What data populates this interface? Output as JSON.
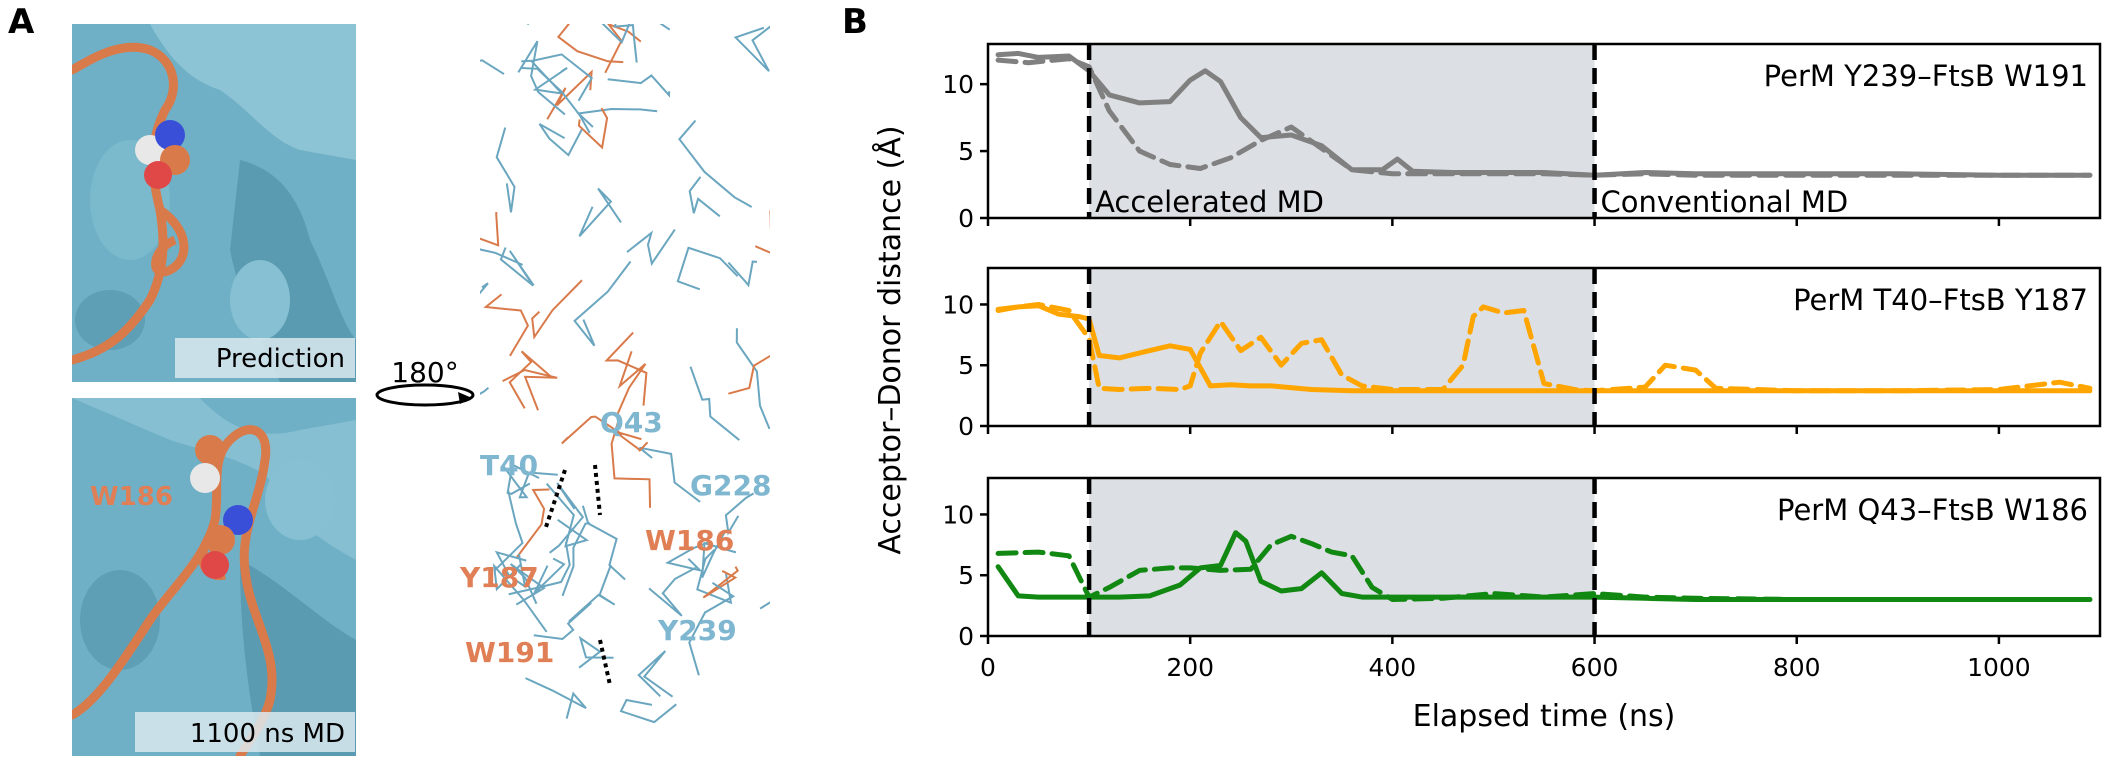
{
  "panels": {
    "a": "A",
    "b": "B"
  },
  "molecular": {
    "top_caption": "Prediction",
    "bottom_caption": "1100 ns MD",
    "rotation": "180°",
    "surface_label": "W186",
    "residue_labels_blue": [
      "Q43",
      "T40",
      "G228",
      "Y239"
    ],
    "residue_labels_orange": [
      "W186",
      "Y187",
      "W191"
    ],
    "colors": {
      "surface": "#6fb0c6",
      "ribbon": "#d97a4a",
      "blue_text": "#7fb6d0",
      "orange_text": "#e07f55"
    }
  },
  "chart_data": {
    "type": "line",
    "xlabel": "Elapsed time (ns)",
    "ylabel": "Acceptor–Donor distance (Å)",
    "xlim": [
      0,
      1100
    ],
    "xticks": [
      "0",
      "200",
      "400",
      "600",
      "800",
      "1000"
    ],
    "yticks": [
      "0",
      "5",
      "10"
    ],
    "ylim": [
      0,
      13
    ],
    "shaded_region": [
      100,
      600
    ],
    "vlines": [
      100,
      600
    ],
    "region_labels": [
      "Accelerated MD",
      "Conventional MD"
    ],
    "subplots": [
      {
        "title": "PerM Y239–FtsB W191",
        "color": "#808080",
        "series": [
          {
            "style": "solid",
            "x": [
              10,
              30,
              50,
              80,
              100,
              120,
              150,
              180,
              200,
              215,
              230,
              250,
              270,
              300,
              330,
              360,
              390,
              405,
              420,
              460,
              500,
              550,
              600,
              650,
              700,
              800,
              900,
              1000,
              1090
            ],
            "y": [
              12.2,
              12.3,
              12,
              12.1,
              11,
              9.2,
              8.6,
              8.7,
              10.3,
              11,
              10.2,
              7.5,
              6,
              6.2,
              5.4,
              3.6,
              3.6,
              4.4,
              3.5,
              3.4,
              3.4,
              3.4,
              3.2,
              3.4,
              3.3,
              3.3,
              3.3,
              3.2,
              3.2
            ]
          },
          {
            "style": "dashed",
            "x": [
              10,
              40,
              80,
              100,
              120,
              150,
              180,
              210,
              240,
              270,
              300,
              330,
              360,
              400,
              450,
              500,
              550,
              600,
              650,
              700,
              800,
              900,
              1000,
              1090
            ],
            "y": [
              11.8,
              11.6,
              11.9,
              11.3,
              8,
              5,
              4,
              3.7,
              4.5,
              5.8,
              6.8,
              5.2,
              3.6,
              3.3,
              3.3,
              3.3,
              3.3,
              3.2,
              3.3,
              3.2,
              3.2,
              3.2,
              3.2,
              3.2
            ]
          }
        ]
      },
      {
        "title": "PerM T40–FtsB Y187",
        "color": "#ffa500",
        "series": [
          {
            "style": "solid",
            "x": [
              10,
              30,
              50,
              70,
              90,
              100,
              110,
              130,
              160,
              180,
              200,
              220,
              240,
              260,
              280,
              320,
              360,
              400,
              500,
              600,
              700,
              800,
              900,
              1000,
              1090
            ],
            "y": [
              9.5,
              9.8,
              9.9,
              9.2,
              9,
              8.8,
              5.8,
              5.6,
              6.2,
              6.6,
              6.3,
              3.3,
              3.4,
              3.3,
              3.3,
              3,
              2.9,
              2.9,
              2.9,
              2.9,
              2.9,
              2.9,
              2.9,
              2.9,
              2.9
            ]
          },
          {
            "style": "dashed",
            "x": [
              10,
              30,
              50,
              80,
              100,
              110,
              130,
              160,
              190,
              200,
              210,
              230,
              250,
              270,
              290,
              310,
              330,
              350,
              370,
              400,
              450,
              470,
              480,
              490,
              510,
              530,
              550,
              580,
              600,
              650,
              670,
              700,
              720,
              760,
              800,
              900,
              1000,
              1060,
              1090
            ],
            "y": [
              9.6,
              9.8,
              10,
              9.5,
              7.2,
              3.1,
              3,
              3.1,
              3,
              3.3,
              6,
              8.6,
              6.2,
              7.3,
              5,
              6.8,
              7.1,
              4.2,
              3.3,
              3,
              3,
              5,
              9,
              9.8,
              9.3,
              9.5,
              3.5,
              3,
              2.9,
              3.2,
              5,
              4.6,
              3.1,
              3,
              2.9,
              2.9,
              3,
              3.6,
              3.1
            ]
          }
        ]
      },
      {
        "title": "PerM Q43–FtsB W186",
        "color": "#118811",
        "series": [
          {
            "style": "solid",
            "x": [
              10,
              30,
              50,
              70,
              100,
              130,
              160,
              190,
              210,
              230,
              245,
              255,
              270,
              290,
              310,
              330,
              350,
              370,
              400,
              450,
              500,
              550,
              600,
              650,
              700,
              800,
              900,
              1000,
              1090
            ],
            "y": [
              5.7,
              3.3,
              3.2,
              3.2,
              3.2,
              3.2,
              3.3,
              4.2,
              5.6,
              5.8,
              8.5,
              7.8,
              4.5,
              3.7,
              3.9,
              5.2,
              3.5,
              3.2,
              3.2,
              3.2,
              3.2,
              3.2,
              3.2,
              3.1,
              3,
              3,
              3,
              3,
              3
            ]
          },
          {
            "style": "dashed",
            "x": [
              10,
              50,
              80,
              100,
              120,
              150,
              180,
              200,
              230,
              260,
              280,
              300,
              320,
              340,
              360,
              380,
              400,
              450,
              500,
              550,
              600,
              650,
              700,
              800,
              900,
              1000,
              1090
            ],
            "y": [
              6.8,
              6.9,
              6.6,
              3.2,
              4,
              5.4,
              5.6,
              5.6,
              5.4,
              5.5,
              7.5,
              8.2,
              7.6,
              6.9,
              6.6,
              4,
              3,
              3.1,
              3.5,
              3.2,
              3.5,
              3.2,
              3.1,
              3,
              3,
              3,
              3
            ]
          }
        ]
      }
    ]
  }
}
